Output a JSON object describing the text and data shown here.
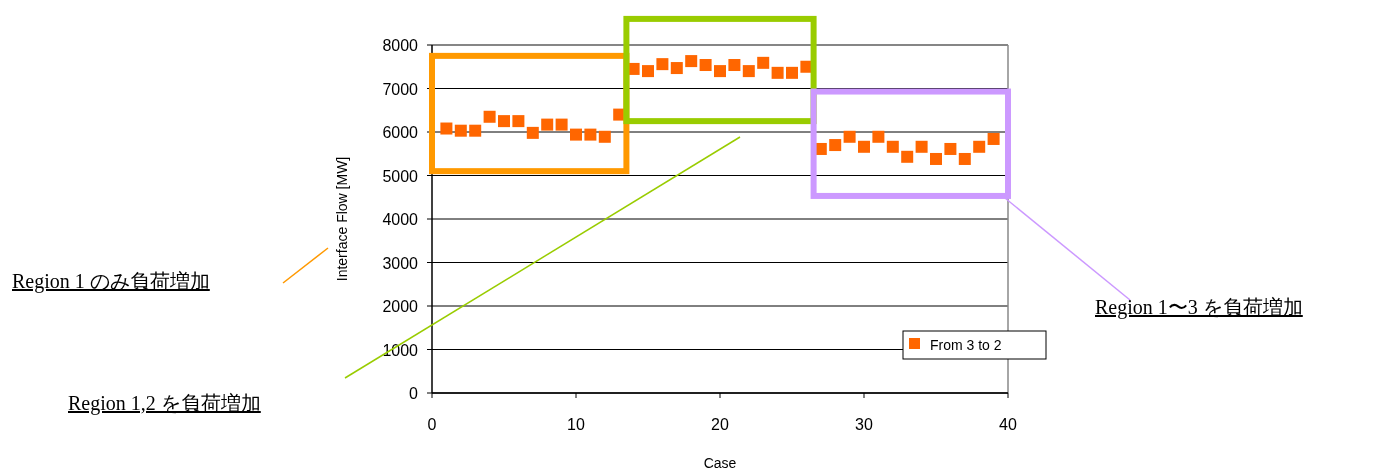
{
  "chart_data": {
    "type": "scatter",
    "xlabel": "Case",
    "ylabel": "Interface Flow [MW]",
    "xlim": [
      0,
      40
    ],
    "xticks": [
      0,
      10,
      20,
      30,
      40
    ],
    "ylim": [
      0,
      8000
    ],
    "yticks": [
      0,
      1000,
      2000,
      3000,
      4000,
      5000,
      6000,
      7000,
      8000
    ],
    "grid": "y",
    "legend": "bottom right",
    "marker": "square",
    "series": [
      {
        "name": "From 3 to 2",
        "color": "#ff6600",
        "x": [
          1,
          2,
          3,
          4,
          5,
          6,
          7,
          8,
          9,
          10,
          11,
          12,
          13,
          14,
          15,
          16,
          17,
          18,
          19,
          20,
          21,
          22,
          23,
          24,
          25,
          26,
          27,
          28,
          29,
          30,
          31,
          32,
          33,
          34,
          35,
          36,
          37,
          38,
          39
        ],
        "values": [
          6080,
          6030,
          6030,
          6350,
          6250,
          6250,
          5980,
          6170,
          6170,
          5940,
          5940,
          5890,
          6400,
          7450,
          7400,
          7560,
          7470,
          7630,
          7540,
          7400,
          7540,
          7400,
          7590,
          7360,
          7360,
          7500,
          5610,
          5700,
          5890,
          5660,
          5890,
          5660,
          5430,
          5660,
          5380,
          5610,
          5380,
          5660,
          5840
        ]
      }
    ],
    "annotations": [
      "Region 1 のみ負荷増加",
      "Region 1,2 を負荷増加",
      "Region 1〜3 を負荷増加"
    ]
  }
}
